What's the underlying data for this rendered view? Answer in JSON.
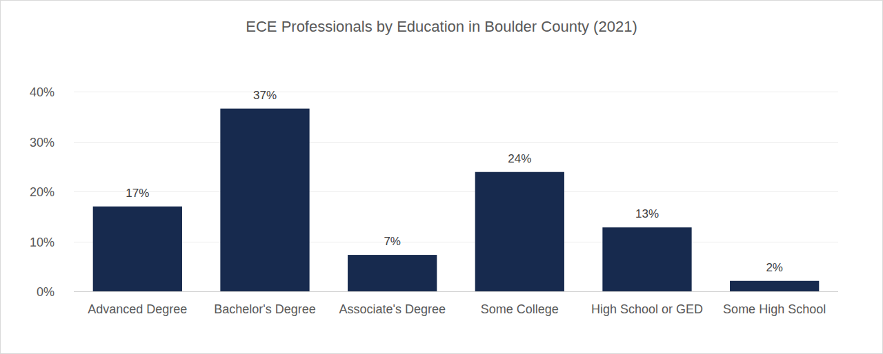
{
  "chart_data": {
    "type": "bar",
    "title": "ECE Professionals by Education in Boulder County (2021)",
    "categories": [
      "Advanced Degree",
      "Bachelor's Degree",
      "Associate's Degree",
      "Some College",
      "High School or GED",
      "Some High School"
    ],
    "values": [
      17,
      36.6,
      7.3,
      23.9,
      12.8,
      2.1
    ],
    "value_labels": [
      "17%",
      "37%",
      "7%",
      "24%",
      "13%",
      "2%"
    ],
    "color": "#172a4e",
    "ylim": [
      0,
      40
    ],
    "yticks": [
      {
        "value": 0,
        "label": "0%"
      },
      {
        "value": 10,
        "label": "10%"
      },
      {
        "value": 20,
        "label": "20%"
      },
      {
        "value": 30,
        "label": "30%"
      },
      {
        "value": 40,
        "label": "40%"
      }
    ],
    "grid": true,
    "data_labels": true
  }
}
